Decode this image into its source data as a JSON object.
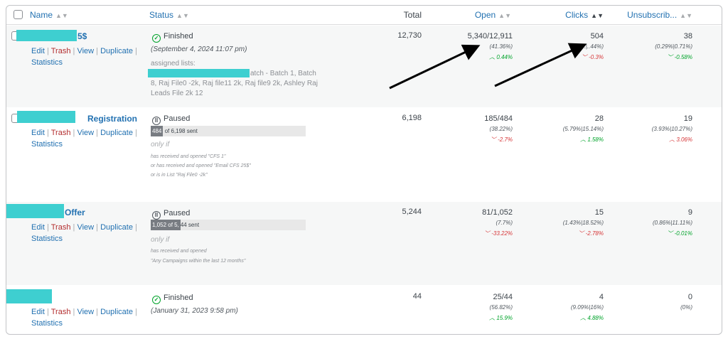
{
  "header": {
    "name": "Name",
    "status": "Status",
    "total": "Total",
    "open": "Open",
    "clicks": "Clicks",
    "unsub": "Unsubscrib..."
  },
  "actions": {
    "edit": "Edit",
    "trash": "Trash",
    "view": "View",
    "duplicate": "Duplicate",
    "statistics": "Statistics",
    "sep": "|"
  },
  "rows": [
    {
      "name": "5$",
      "status": "Finished",
      "date": "(September 4, 2024 11:07 pm)",
      "assigned_label": "assigned lists:",
      "lists_1": "atch - Batch 1, Batch",
      "lists_2": "8, Raj File0 -2k, Raj file11 2k, Raj file9 2k, Ashley Raj",
      "lists_3": "Leads File 2k 12",
      "total": "12,730",
      "open": {
        "main": "5,340/12,911",
        "pct": "(41.36%)",
        "trend": "0.44%",
        "dir": "up"
      },
      "clicks": {
        "main": "504",
        "pct": "(3.9...|..44%)",
        "trend": "-0.3%",
        "dir": "down"
      },
      "unsub": {
        "main": "38",
        "pct": "(0.29%|0.71%)",
        "trend": "-0.58%",
        "dir": "down-green"
      }
    },
    {
      "name": "Registration",
      "status": "Paused",
      "progress_fill": "484",
      "progress_rest": "of 6,198 sent",
      "progress_pct": 7.8,
      "only_if": "only if",
      "cond_1": "has received and opened  \"CFS 1\"",
      "cond_2": "or has received and opened  \"Email CFS 25$\"",
      "cond_3": "or is in List  \"Raj File0 -2k\"",
      "total": "6,198",
      "open": {
        "main": "185/484",
        "pct": "(38.22%)",
        "trend": "-2.7%",
        "dir": "down"
      },
      "clicks": {
        "main": "28",
        "pct": "(5.79%|15.14%)",
        "trend": "1.58%",
        "dir": "up"
      },
      "unsub": {
        "main": "19",
        "pct": "(3.93%|10.27%)",
        "trend": "3.06%",
        "dir": "up-red"
      }
    },
    {
      "name": "Offer",
      "status": "Paused",
      "progress_fill": "1,052 of 5,",
      "progress_rest": "44 sent",
      "progress_pct": 20.1,
      "only_if": "only if",
      "cond_1": "has received and opened",
      "cond_2": "\"Any Campaigns within the last 12 months\"",
      "total": "5,244",
      "open": {
        "main": "81/1,052",
        "pct": "(7.7%)",
        "trend": "-33.22%",
        "dir": "down"
      },
      "clicks": {
        "main": "15",
        "pct": "(1.43%|18.52%)",
        "trend": "-2.78%",
        "dir": "down"
      },
      "unsub": {
        "main": "9",
        "pct": "(0.86%|11.11%)",
        "trend": "-0.01%",
        "dir": "down-green"
      }
    },
    {
      "status": "Finished",
      "date": "(January 31, 2023 9:58 pm)",
      "total": "44",
      "open": {
        "main": "25/44",
        "pct": "(56.82%)",
        "trend": "15.9%",
        "dir": "up"
      },
      "clicks": {
        "main": "4",
        "pct": "(9.09%|16%)",
        "trend": "4.88%",
        "dir": "up"
      },
      "unsub": {
        "main": "0",
        "pct": "(0%)"
      }
    }
  ],
  "colors": {
    "link": "#2271b1",
    "up": "#00a32a",
    "down": "#d63638",
    "redaction": "#3ecfd0"
  }
}
